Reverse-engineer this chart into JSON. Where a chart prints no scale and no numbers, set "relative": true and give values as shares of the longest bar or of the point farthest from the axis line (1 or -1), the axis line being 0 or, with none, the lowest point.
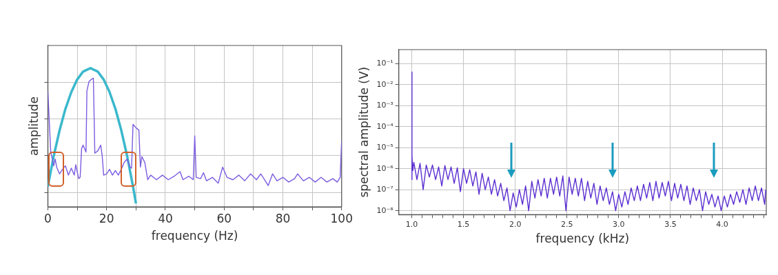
{
  "chart_data": [
    {
      "type": "line",
      "relative": true,
      "xlabel": "frequency (Hz)",
      "ylabel": "amplitude",
      "xlim": [
        0,
        100
      ],
      "xticks": [
        0,
        {
          "value": 10,
          "label": null
        },
        20,
        {
          "value": 30,
          "label": null
        },
        40,
        {
          "value": 50,
          "label": null
        },
        60,
        {
          "value": 70,
          "label": null
        },
        80,
        {
          "value": 90,
          "label": null
        },
        100
      ],
      "grid": true,
      "legend": false,
      "marker": "none",
      "line_style": "solid",
      "series": [
        {
          "color": "#7b5ce0",
          "x": [
            0,
            1,
            2,
            2.5,
            3,
            4,
            5,
            6,
            7,
            8,
            9,
            9.5,
            10.5,
            11,
            11.5,
            12,
            13,
            13.3,
            14,
            14.8,
            15.5,
            16,
            17,
            18,
            18.5,
            19,
            20,
            21,
            22,
            23,
            24,
            25,
            26,
            27,
            28,
            28.5,
            29,
            30,
            31,
            31.5,
            32,
            33,
            34,
            35,
            37,
            39,
            41,
            43,
            45,
            46,
            48,
            49.5,
            50,
            50.5,
            52,
            53,
            54,
            56,
            58,
            59.5,
            61,
            63,
            65,
            67,
            69,
            71,
            72.5,
            74,
            75,
            76.5,
            78,
            80,
            82,
            84,
            85,
            87,
            89,
            91,
            93,
            95,
            97,
            98.5,
            99.5,
            100
          ],
          "values": [
            0.836,
            0.395,
            0.296,
            0.345,
            0.287,
            0.238,
            0.271,
            0.296,
            0.229,
            0.279,
            0.229,
            0.304,
            0.204,
            0.213,
            0.42,
            0.445,
            0.395,
            0.836,
            0.902,
            0.919,
            0.927,
            0.387,
            0.404,
            0.445,
            0.37,
            0.229,
            0.238,
            0.271,
            0.229,
            0.262,
            0.229,
            0.271,
            0.321,
            0.345,
            0.287,
            0.279,
            0.595,
            0.57,
            0.553,
            0.287,
            0.362,
            0.321,
            0.196,
            0.229,
            0.196,
            0.229,
            0.196,
            0.221,
            0.254,
            0.196,
            0.221,
            0.196,
            0.512,
            0.213,
            0.204,
            0.246,
            0.188,
            0.213,
            0.171,
            0.287,
            0.213,
            0.196,
            0.229,
            0.188,
            0.238,
            0.196,
            0.238,
            0.188,
            0.154,
            0.238,
            0.188,
            0.213,
            0.179,
            0.204,
            0.238,
            0.188,
            0.213,
            0.179,
            0.213,
            0.179,
            0.204,
            0.179,
            0.213,
            0.478
          ]
        },
        {
          "color": "#3ab8cc",
          "x": [
            0,
            2,
            4,
            6,
            8,
            10,
            12,
            14.5,
            17,
            19,
            21,
            23,
            25,
            27,
            29,
            30
          ],
          "values": [
            0.147,
            0.366,
            0.552,
            0.707,
            0.828,
            0.918,
            0.975,
            1,
            0.975,
            0.918,
            0.828,
            0.707,
            0.552,
            0.366,
            0.146,
            0.025
          ]
        }
      ]
    },
    {
      "type": "line",
      "xlabel": "frequency (kHz)",
      "ylabel": "spectral amplitude (V)",
      "log": "y",
      "xlim": [
        0.874,
        4.426
      ],
      "ylim": [
        6.5e-09,
        0.46
      ],
      "xticks": [
        {
          "value": 1,
          "label": "1.0"
        },
        {
          "value": 1.1,
          "label": null
        },
        {
          "value": 1.2,
          "label": null
        },
        {
          "value": 1.3,
          "label": null
        },
        {
          "value": 1.4,
          "label": null
        },
        1.5,
        {
          "value": 1.6,
          "label": null
        },
        {
          "value": 1.7,
          "label": null
        },
        {
          "value": 1.8,
          "label": null
        },
        {
          "value": 1.9,
          "label": null
        },
        {
          "value": 2,
          "label": "2.0"
        },
        {
          "value": 2.1,
          "label": null
        },
        {
          "value": 2.2,
          "label": null
        },
        {
          "value": 2.3,
          "label": null
        },
        {
          "value": 2.4,
          "label": null
        },
        2.5,
        {
          "value": 2.6,
          "label": null
        },
        {
          "value": 2.7,
          "label": null
        },
        {
          "value": 2.8,
          "label": null
        },
        {
          "value": 2.9,
          "label": null
        },
        {
          "value": 3,
          "label": "3.0"
        },
        {
          "value": 3.1,
          "label": null
        },
        {
          "value": 3.2,
          "label": null
        },
        {
          "value": 3.3,
          "label": null
        },
        {
          "value": 3.4,
          "label": null
        },
        3.5,
        {
          "value": 3.6,
          "label": null
        },
        {
          "value": 3.7,
          "label": null
        },
        {
          "value": 3.8,
          "label": null
        },
        {
          "value": 3.9,
          "label": null
        },
        {
          "value": 4,
          "label": "4.0"
        },
        {
          "value": 4.1,
          "label": null
        },
        {
          "value": 4.2,
          "label": null
        },
        {
          "value": 4.3,
          "label": null
        },
        {
          "value": 4.4,
          "label": null
        }
      ],
      "yticks": [
        {
          "value": 1e-08,
          "label": "10⁻⁸"
        },
        {
          "value": 1e-07,
          "label": "10⁻⁷"
        },
        {
          "value": 1e-06,
          "label": "10⁻⁶"
        },
        {
          "value": 1e-05,
          "label": "10⁻⁵"
        },
        {
          "value": 0.0001,
          "label": "10⁻⁴"
        },
        {
          "value": 0.001,
          "label": "10⁻³"
        },
        {
          "value": 0.01,
          "label": "10⁻²"
        },
        {
          "value": 0.1,
          "label": "10⁻¹"
        }
      ],
      "grid": true,
      "legend": false,
      "marker": "none",
      "line_style": "solid",
      "series": [
        {
          "color": "#5a2ed0",
          "x": [
            1,
            1.001,
            1.003,
            1.01,
            1.02,
            1.05,
            1.08,
            1.11,
            1.14,
            1.17,
            1.2,
            1.23,
            1.26,
            1.29,
            1.32,
            1.35,
            1.38,
            1.41,
            1.44,
            1.47,
            1.5,
            1.53,
            1.56,
            1.59,
            1.62,
            1.65,
            1.68,
            1.71,
            1.74,
            1.77,
            1.8,
            1.83,
            1.86,
            1.89,
            1.92,
            1.95,
            1.98,
            2.01,
            2.04,
            2.07,
            2.1,
            2.13,
            2.16,
            2.19,
            2.22,
            2.25,
            2.28,
            2.31,
            2.34,
            2.37,
            2.4,
            2.43,
            2.46,
            2.49,
            2.52,
            2.55,
            2.58,
            2.61,
            2.64,
            2.67,
            2.7,
            2.73,
            2.76,
            2.79,
            2.82,
            2.85,
            2.88,
            2.91,
            2.94,
            2.97,
            3,
            3.03,
            3.06,
            3.09,
            3.12,
            3.15,
            3.18,
            3.21,
            3.24,
            3.27,
            3.3,
            3.33,
            3.36,
            3.39,
            3.42,
            3.45,
            3.48,
            3.51,
            3.54,
            3.57,
            3.6,
            3.63,
            3.66,
            3.69,
            3.72,
            3.75,
            3.78,
            3.81,
            3.84,
            3.87,
            3.9,
            3.93,
            3.96,
            3.99,
            4.02,
            4.05,
            4.08,
            4.11,
            4.14,
            4.17,
            4.2,
            4.23,
            4.26,
            4.29,
            4.32,
            4.35,
            4.38,
            4.41,
            4.42
          ],
          "values": [
            3e-07,
            0.04,
            4e-06,
            8e-07,
            2e-06,
            3e-07,
            1.8e-06,
            1e-07,
            1.5e-06,
            4e-07,
            1.5e-06,
            3e-07,
            1.2e-06,
            1.5e-07,
            1.4e-06,
            3e-07,
            1.2e-06,
            2e-07,
            1.1e-06,
            8e-08,
            1e-06,
            2e-07,
            9e-07,
            1.5e-07,
            7e-07,
            6e-08,
            6e-07,
            1e-07,
            4e-07,
            6e-08,
            3e-07,
            5e-08,
            2e-07,
            3e-08,
            1.2e-07,
            1e-08,
            7e-08,
            1.5e-08,
            1e-07,
            2e-08,
            1.5e-07,
            1e-08,
            2.5e-07,
            4e-08,
            3e-07,
            5e-08,
            3.5e-07,
            4e-08,
            3.5e-07,
            6e-08,
            4e-07,
            5e-08,
            4.5e-07,
            1e-08,
            4e-07,
            6e-08,
            3.5e-07,
            5e-08,
            3.5e-07,
            3e-08,
            2.5e-07,
            4e-08,
            2e-07,
            2e-08,
            1.5e-07,
            3e-08,
            1.2e-07,
            2e-08,
            8e-08,
            1e-08,
            6e-08,
            1.5e-08,
            8e-08,
            2e-08,
            1.2e-07,
            3e-08,
            1.5e-07,
            3e-08,
            1.8e-07,
            4e-08,
            2.2e-07,
            3e-08,
            2.5e-07,
            4e-08,
            2.2e-07,
            5e-08,
            2.5e-07,
            3e-08,
            2e-07,
            4e-08,
            1.8e-07,
            3e-08,
            1.5e-07,
            2e-08,
            1.2e-07,
            3e-08,
            1e-07,
            1e-08,
            8e-08,
            2e-08,
            6e-08,
            1.5e-08,
            5e-08,
            1e-08,
            5e-08,
            1.5e-08,
            6e-08,
            2e-08,
            8e-08,
            2.5e-08,
            1e-07,
            2e-08,
            1.2e-07,
            3e-08,
            1.5e-07,
            3e-08,
            1.2e-07,
            2e-08,
            1e-07
          ]
        }
      ]
    }
  ]
}
